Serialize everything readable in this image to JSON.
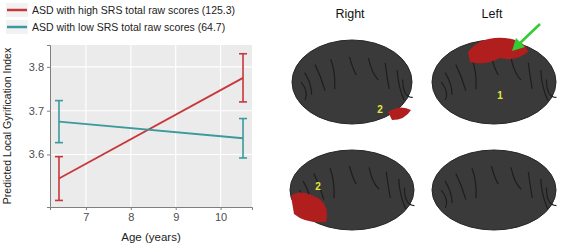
{
  "chart_data": {
    "type": "line",
    "x_label": "Age (years)",
    "y_label": "Predicted Local Gyrification Index",
    "x": [
      6.4,
      10.5
    ],
    "xlim": [
      6.2,
      10.7
    ],
    "xticks": [
      7,
      8,
      9,
      10
    ],
    "ylim": [
      3.48,
      3.85
    ],
    "yticks": [
      3.6,
      3.7,
      3.8
    ],
    "grid": true,
    "legend": "top-left",
    "series": [
      {
        "name": "ASD with high SRS total raw scores (125.3)",
        "color": "#c8373a",
        "values": [
          3.545,
          3.775
        ],
        "errors": [
          0.05,
          0.055
        ]
      },
      {
        "name": "ASD with low SRS total raw scores (64.7)",
        "color": "#3b9a9e",
        "values": [
          3.675,
          3.637
        ],
        "errors": [
          0.048,
          0.045
        ]
      }
    ]
  },
  "brain_panel": {
    "hemisphere_labels": [
      "Right",
      "Left"
    ],
    "region_labels": [
      "1",
      "2",
      "2"
    ]
  }
}
